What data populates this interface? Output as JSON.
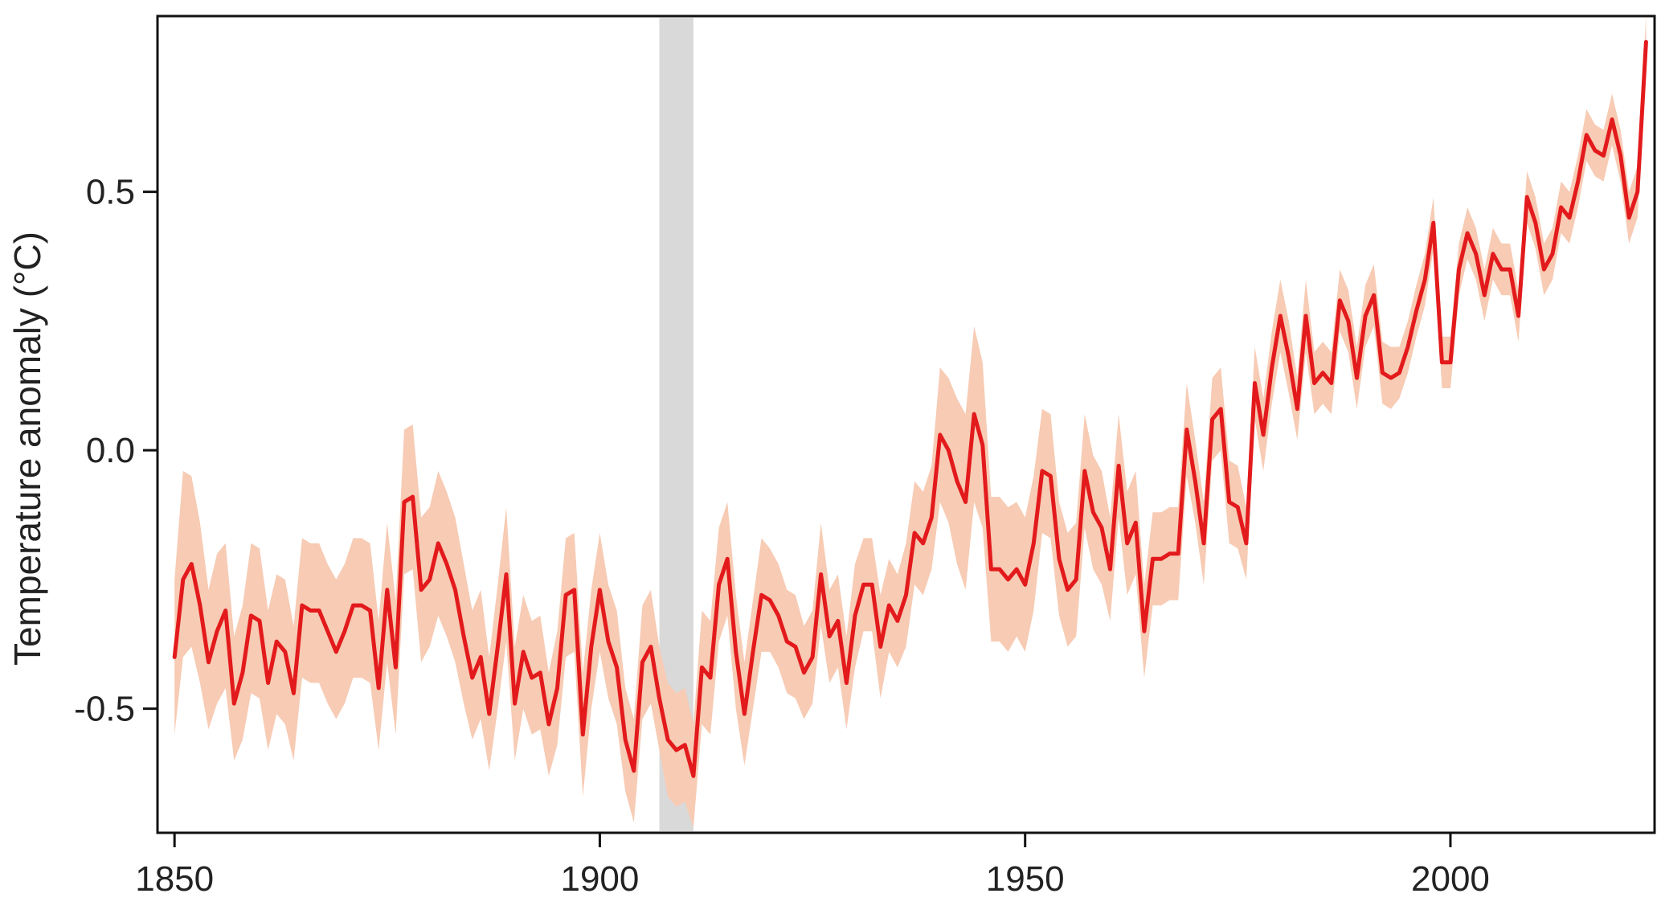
{
  "chart_data": {
    "type": "line",
    "title": "",
    "xlabel": "",
    "ylabel": "Temperature anomaly (°C)",
    "xlim": [
      1848,
      2024
    ],
    "ylim": [
      -0.74,
      0.84
    ],
    "grid": false,
    "legend": "none",
    "x_ticks": [
      1850,
      1900,
      1950,
      2000
    ],
    "x_tick_labels": [
      "1850",
      "1900",
      "1950",
      "2000"
    ],
    "y_ticks": [
      -0.5,
      0.0,
      0.5
    ],
    "y_tick_labels": [
      "-0.5",
      "0.0",
      "0.5"
    ],
    "highlight_band": {
      "x_start": 1907,
      "x_end": 1911,
      "color": "#d9d9d9"
    },
    "colors": {
      "line": "#e31a1c",
      "band": "#f7cbb4",
      "axis": "#111111"
    },
    "series": [
      {
        "x": [
          1850,
          1851,
          1852,
          1853,
          1854,
          1855,
          1856,
          1857,
          1858,
          1859,
          1860,
          1861,
          1862,
          1863,
          1864,
          1865,
          1866,
          1867,
          1868,
          1869,
          1870,
          1871,
          1872,
          1873,
          1874,
          1875,
          1876,
          1877,
          1878,
          1879,
          1880,
          1881,
          1882,
          1883,
          1884,
          1885,
          1886,
          1887,
          1888,
          1889,
          1890,
          1891,
          1892,
          1893,
          1894,
          1895,
          1896,
          1897,
          1898,
          1899,
          1900,
          1901,
          1902,
          1903,
          1904,
          1905,
          1906,
          1907,
          1908,
          1909,
          1910,
          1911,
          1912,
          1913,
          1914,
          1915,
          1916,
          1917,
          1918,
          1919,
          1920,
          1921,
          1922,
          1923,
          1924,
          1925,
          1926,
          1927,
          1928,
          1929,
          1930,
          1931,
          1932,
          1933,
          1934,
          1935,
          1936,
          1937,
          1938,
          1939,
          1940,
          1941,
          1942,
          1943,
          1944,
          1945,
          1946,
          1947,
          1948,
          1949,
          1950,
          1951,
          1952,
          1953,
          1954,
          1955,
          1956,
          1957,
          1958,
          1959,
          1960,
          1961,
          1962,
          1963,
          1964,
          1965,
          1966,
          1967,
          1968,
          1969,
          1970,
          1971,
          1972,
          1973,
          1974,
          1975,
          1976,
          1977,
          1978,
          1979,
          1980,
          1981,
          1982,
          1983,
          1984,
          1985,
          1986,
          1987,
          1988,
          1989,
          1990,
          1991,
          1992,
          1993,
          1994,
          1995,
          1996,
          1997,
          1998,
          1999,
          2000,
          2001,
          2002,
          2003,
          2004,
          2005,
          2006,
          2007,
          2008,
          2009,
          2010,
          2011,
          2012,
          2013,
          2014,
          2015,
          2016,
          2017,
          2018,
          2019,
          2020,
          2021,
          2022,
          2023
        ],
        "y": [
          -0.4,
          -0.25,
          -0.22,
          -0.3,
          -0.41,
          -0.35,
          -0.31,
          -0.49,
          -0.43,
          -0.32,
          -0.33,
          -0.45,
          -0.37,
          -0.39,
          -0.47,
          -0.3,
          -0.31,
          -0.31,
          -0.35,
          -0.39,
          -0.35,
          -0.3,
          -0.3,
          -0.31,
          -0.46,
          -0.27,
          -0.42,
          -0.1,
          -0.09,
          -0.27,
          -0.25,
          -0.18,
          -0.22,
          -0.27,
          -0.36,
          -0.44,
          -0.4,
          -0.51,
          -0.38,
          -0.24,
          -0.49,
          -0.39,
          -0.44,
          -0.43,
          -0.53,
          -0.46,
          -0.28,
          -0.27,
          -0.55,
          -0.38,
          -0.27,
          -0.37,
          -0.42,
          -0.56,
          -0.62,
          -0.41,
          -0.38,
          -0.48,
          -0.56,
          -0.58,
          -0.57,
          -0.63,
          -0.42,
          -0.44,
          -0.26,
          -0.21,
          -0.39,
          -0.51,
          -0.39,
          -0.28,
          -0.29,
          -0.32,
          -0.37,
          -0.38,
          -0.43,
          -0.4,
          -0.24,
          -0.36,
          -0.33,
          -0.45,
          -0.32,
          -0.26,
          -0.26,
          -0.38,
          -0.3,
          -0.33,
          -0.28,
          -0.16,
          -0.18,
          -0.13,
          0.03,
          0.0,
          -0.06,
          -0.1,
          0.07,
          0.01,
          -0.23,
          -0.23,
          -0.25,
          -0.23,
          -0.26,
          -0.18,
          -0.04,
          -0.05,
          -0.21,
          -0.27,
          -0.25,
          -0.04,
          -0.12,
          -0.15,
          -0.23,
          -0.03,
          -0.18,
          -0.14,
          -0.35,
          -0.21,
          -0.21,
          -0.2,
          -0.2,
          0.04,
          -0.06,
          -0.18,
          0.06,
          0.08,
          -0.1,
          -0.11,
          -0.18,
          0.13,
          0.03,
          0.16,
          0.26,
          0.18,
          0.08,
          0.26,
          0.13,
          0.15,
          0.13,
          0.29,
          0.25,
          0.14,
          0.26,
          0.3,
          0.15,
          0.14,
          0.15,
          0.2,
          0.27,
          0.33,
          0.44,
          0.17,
          0.17,
          0.35,
          0.42,
          0.38,
          0.3,
          0.38,
          0.35,
          0.35,
          0.26,
          0.49,
          0.44,
          0.35,
          0.38,
          0.47,
          0.45,
          0.52,
          0.61,
          0.58,
          0.57,
          0.64,
          0.57,
          0.45,
          0.5,
          0.79
        ],
        "lower": [
          -0.55,
          -0.4,
          -0.38,
          -0.45,
          -0.54,
          -0.49,
          -0.46,
          -0.6,
          -0.56,
          -0.47,
          -0.48,
          -0.58,
          -0.51,
          -0.53,
          -0.6,
          -0.44,
          -0.45,
          -0.45,
          -0.49,
          -0.52,
          -0.49,
          -0.44,
          -0.44,
          -0.45,
          -0.58,
          -0.41,
          -0.55,
          -0.24,
          -0.23,
          -0.41,
          -0.38,
          -0.32,
          -0.36,
          -0.41,
          -0.49,
          -0.56,
          -0.52,
          -0.62,
          -0.5,
          -0.37,
          -0.6,
          -0.5,
          -0.55,
          -0.54,
          -0.63,
          -0.57,
          -0.4,
          -0.39,
          -0.67,
          -0.5,
          -0.39,
          -0.48,
          -0.53,
          -0.66,
          -0.72,
          -0.52,
          -0.49,
          -0.58,
          -0.67,
          -0.69,
          -0.68,
          -0.73,
          -0.53,
          -0.55,
          -0.37,
          -0.32,
          -0.5,
          -0.61,
          -0.5,
          -0.39,
          -0.39,
          -0.42,
          -0.47,
          -0.48,
          -0.52,
          -0.49,
          -0.34,
          -0.45,
          -0.42,
          -0.54,
          -0.42,
          -0.35,
          -0.35,
          -0.48,
          -0.39,
          -0.42,
          -0.38,
          -0.26,
          -0.28,
          -0.23,
          -0.1,
          -0.14,
          -0.22,
          -0.27,
          -0.1,
          -0.15,
          -0.37,
          -0.37,
          -0.39,
          -0.36,
          -0.39,
          -0.31,
          -0.16,
          -0.17,
          -0.32,
          -0.38,
          -0.36,
          -0.15,
          -0.23,
          -0.26,
          -0.33,
          -0.13,
          -0.28,
          -0.24,
          -0.44,
          -0.3,
          -0.3,
          -0.29,
          -0.29,
          -0.05,
          -0.14,
          -0.26,
          -0.02,
          0.0,
          -0.18,
          -0.19,
          -0.25,
          0.06,
          -0.04,
          0.09,
          0.19,
          0.11,
          0.02,
          0.19,
          0.07,
          0.09,
          0.07,
          0.23,
          0.19,
          0.08,
          0.2,
          0.24,
          0.09,
          0.08,
          0.1,
          0.15,
          0.22,
          0.28,
          0.39,
          0.12,
          0.12,
          0.3,
          0.37,
          0.33,
          0.25,
          0.33,
          0.3,
          0.3,
          0.21,
          0.44,
          0.39,
          0.3,
          0.33,
          0.42,
          0.4,
          0.47,
          0.56,
          0.53,
          0.52,
          0.59,
          0.52,
          0.4,
          0.45,
          0.74
        ],
        "upper": [
          -0.25,
          -0.04,
          -0.05,
          -0.14,
          -0.27,
          -0.2,
          -0.18,
          -0.36,
          -0.3,
          -0.18,
          -0.19,
          -0.31,
          -0.24,
          -0.25,
          -0.34,
          -0.17,
          -0.18,
          -0.18,
          -0.22,
          -0.25,
          -0.22,
          -0.17,
          -0.17,
          -0.18,
          -0.33,
          -0.14,
          -0.29,
          0.04,
          0.05,
          -0.13,
          -0.11,
          -0.04,
          -0.08,
          -0.13,
          -0.22,
          -0.31,
          -0.27,
          -0.4,
          -0.26,
          -0.11,
          -0.38,
          -0.28,
          -0.33,
          -0.32,
          -0.43,
          -0.35,
          -0.17,
          -0.16,
          -0.43,
          -0.27,
          -0.16,
          -0.26,
          -0.31,
          -0.46,
          -0.52,
          -0.3,
          -0.27,
          -0.38,
          -0.45,
          -0.47,
          -0.46,
          -0.53,
          -0.31,
          -0.33,
          -0.15,
          -0.1,
          -0.28,
          -0.41,
          -0.29,
          -0.17,
          -0.19,
          -0.22,
          -0.27,
          -0.28,
          -0.34,
          -0.31,
          -0.14,
          -0.27,
          -0.24,
          -0.36,
          -0.22,
          -0.17,
          -0.17,
          -0.28,
          -0.21,
          -0.24,
          -0.18,
          -0.06,
          -0.08,
          -0.03,
          0.16,
          0.14,
          0.1,
          0.07,
          0.24,
          0.17,
          -0.09,
          -0.09,
          -0.11,
          -0.1,
          -0.13,
          -0.05,
          0.08,
          0.07,
          -0.1,
          -0.16,
          -0.14,
          0.07,
          -0.01,
          -0.04,
          -0.13,
          0.07,
          -0.08,
          -0.04,
          -0.26,
          -0.12,
          -0.12,
          -0.11,
          -0.11,
          0.13,
          0.02,
          -0.1,
          0.14,
          0.16,
          -0.02,
          -0.03,
          -0.11,
          0.2,
          0.1,
          0.23,
          0.33,
          0.25,
          0.14,
          0.33,
          0.19,
          0.21,
          0.19,
          0.35,
          0.31,
          0.2,
          0.32,
          0.36,
          0.21,
          0.2,
          0.2,
          0.25,
          0.32,
          0.38,
          0.49,
          0.22,
          0.22,
          0.4,
          0.47,
          0.43,
          0.35,
          0.43,
          0.4,
          0.4,
          0.31,
          0.54,
          0.49,
          0.4,
          0.43,
          0.52,
          0.5,
          0.57,
          0.66,
          0.63,
          0.62,
          0.69,
          0.62,
          0.5,
          0.55,
          0.84
        ]
      }
    ]
  }
}
